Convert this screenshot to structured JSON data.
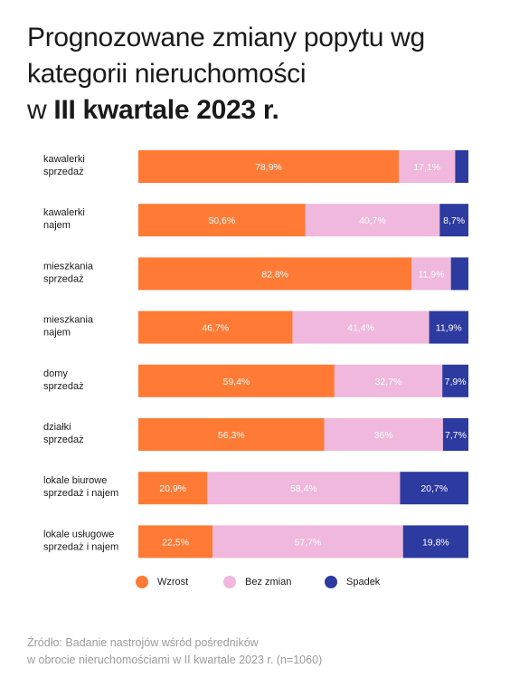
{
  "title": {
    "line1": "Prognozowane zmiany popytu wg",
    "line2": "kategorii nieruchomości",
    "line3_prefix": "w ",
    "line3_bold": "III kwartale 2023 r."
  },
  "chart_data": {
    "type": "bar",
    "orientation": "horizontal",
    "stacked": true,
    "categories": [
      [
        "kawalerki",
        "sprzedaż"
      ],
      [
        "kawalerki",
        "najem"
      ],
      [
        "mieszkania",
        "sprzedaż"
      ],
      [
        "mieszkania",
        "najem"
      ],
      [
        "domy",
        "sprzedaż"
      ],
      [
        "działki",
        "sprzedaż"
      ],
      [
        "lokale biurowe",
        "sprzedaż i najem"
      ],
      [
        "lokale usługowe",
        "sprzedaż i najem"
      ]
    ],
    "series": [
      {
        "name": "Wzrost",
        "color": "#ff7a35",
        "values": [
          78.9,
          50.6,
          82.8,
          46.7,
          59.4,
          56.3,
          20.9,
          22.5
        ],
        "labels": [
          "78,9%",
          "50,6%",
          "82,8%",
          "46,7%",
          "59,4%",
          "56,3%",
          "20,9%",
          "22,5%"
        ]
      },
      {
        "name": "Bez zmian",
        "color": "#efb8dc",
        "values": [
          17.1,
          40.7,
          11.9,
          41.4,
          32.7,
          36,
          58.4,
          57.7
        ],
        "labels": [
          "17,1%",
          "40,7%",
          "11,9%",
          "41,4%",
          "32,7%",
          "36%",
          "58,4%",
          "57,7%"
        ]
      },
      {
        "name": "Spadek",
        "color": "#2d3aa0",
        "values": [
          4.0,
          8.7,
          5.3,
          11.9,
          7.9,
          7.7,
          20.7,
          19.8
        ],
        "labels": [
          "",
          "8,7%",
          "",
          "11,9%",
          "7,9%",
          "7,7%",
          "20,7%",
          "19,8%"
        ]
      }
    ],
    "xlim": [
      0,
      100
    ],
    "legend_position": "bottom"
  },
  "source": {
    "line1": "Źródło: Badanie nastrojów wśród pośredników",
    "line2": "w obrocie nieruchomościami w II kwartale 2023 r. (n=1060)"
  }
}
